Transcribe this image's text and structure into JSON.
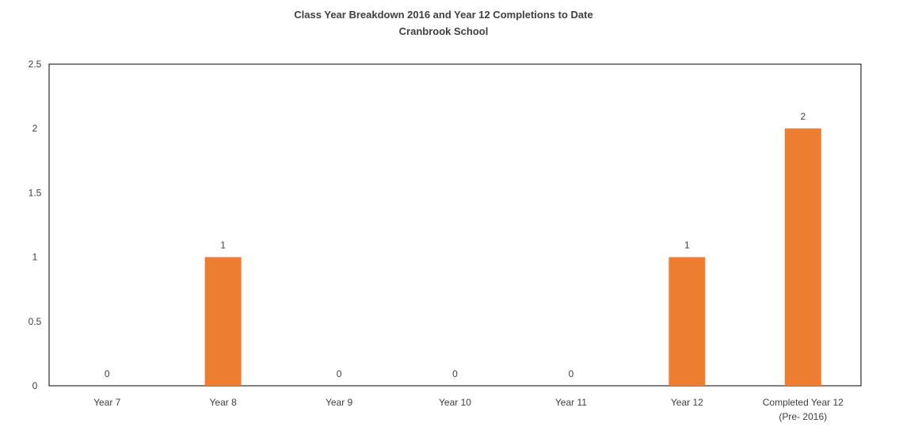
{
  "chart_data": {
    "type": "bar",
    "title": "Class Year Breakdown 2016 and Year 12 Completions to Date",
    "subtitle": "Cranbrook School",
    "categories": [
      [
        "Year 7"
      ],
      [
        "Year 8"
      ],
      [
        "Year 9"
      ],
      [
        "Year 10"
      ],
      [
        "Year 11"
      ],
      [
        "Year 12"
      ],
      [
        "Completed Year 12",
        "(Pre- 2016)"
      ]
    ],
    "values": [
      0,
      1,
      0,
      0,
      0,
      1,
      2
    ],
    "ylim": [
      0,
      2.5
    ],
    "yticks": [
      "0",
      "0.5",
      "1",
      "1.5",
      "2",
      "2.5"
    ],
    "ytick_values": [
      0,
      0.5,
      1,
      1.5,
      2,
      2.5
    ],
    "grid": false,
    "legend": "none",
    "bar_color": "#ED7D31"
  }
}
